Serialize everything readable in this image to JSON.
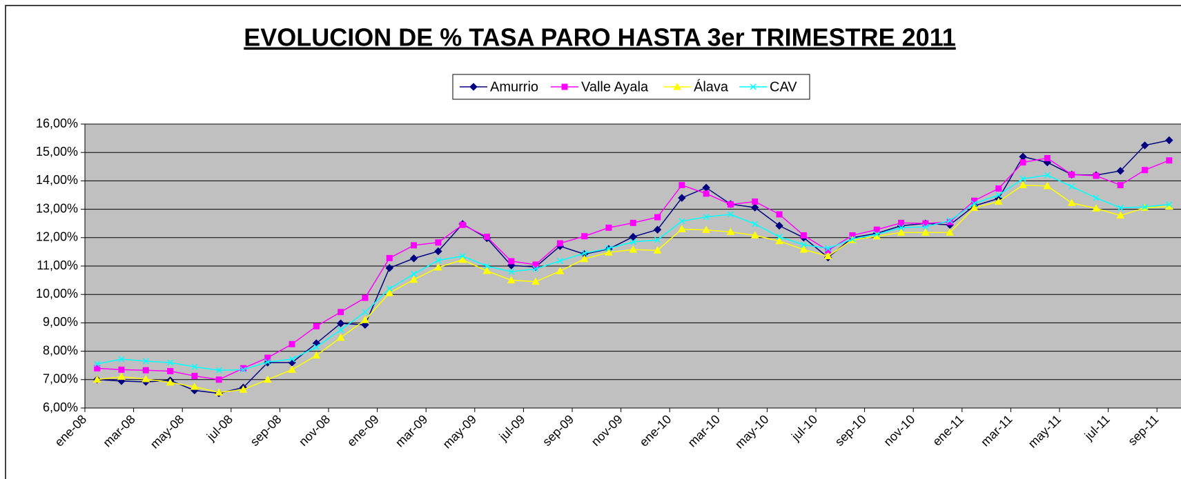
{
  "chart_data": {
    "type": "line",
    "title": "EVOLUCION DE % TASA PARO HASTA 3er TRIMESTRE 2011",
    "categories": [
      "ene-08",
      null,
      "mar-08",
      null,
      "may-08",
      null,
      "jul-08",
      null,
      "sep-08",
      null,
      "nov-08",
      null,
      "ene-09",
      null,
      "mar-09",
      null,
      "may-09",
      null,
      "jul-09",
      null,
      "sep-09",
      null,
      "nov-09",
      null,
      "ene-10",
      null,
      "mar-10",
      null,
      "may-10",
      null,
      "jul-10",
      null,
      "sep-10",
      null,
      "nov-10",
      null,
      "ene-11",
      null,
      "mar-11",
      null,
      "may-11",
      null,
      "jul-11",
      null,
      "sep-11"
    ],
    "series": [
      {
        "name": "Amurrio",
        "color": "#000080",
        "marker": "diamond",
        "values": [
          7.0,
          6.95,
          6.92,
          6.97,
          6.62,
          6.52,
          6.72,
          7.6,
          7.6,
          8.28,
          8.98,
          8.93,
          10.93,
          11.27,
          11.52,
          12.48,
          11.98,
          11.02,
          10.97,
          11.7,
          11.42,
          11.6,
          12.03,
          12.28,
          13.4,
          13.76,
          13.18,
          13.06,
          12.42,
          12.0,
          11.3,
          12.0,
          12.15,
          12.42,
          12.5,
          12.45,
          13.12,
          13.38,
          14.85,
          14.65,
          14.22,
          14.2,
          14.35,
          15.25,
          15.43
        ]
      },
      {
        "name": "Valle Ayala",
        "color": "#ff00ff",
        "marker": "square",
        "values": [
          7.4,
          7.35,
          7.33,
          7.3,
          7.13,
          7.0,
          7.4,
          7.77,
          8.25,
          8.88,
          9.38,
          9.88,
          11.28,
          11.73,
          11.83,
          12.45,
          12.03,
          11.17,
          11.05,
          11.8,
          12.05,
          12.35,
          12.52,
          12.72,
          13.85,
          13.55,
          13.17,
          13.27,
          12.82,
          12.08,
          11.55,
          12.08,
          12.28,
          12.52,
          12.5,
          12.55,
          13.3,
          13.73,
          14.65,
          14.8,
          14.22,
          14.18,
          13.85,
          14.38,
          14.72
        ]
      },
      {
        "name": "Álava",
        "color": "#ffff00",
        "marker": "triangle",
        "values": [
          7.0,
          7.1,
          7.02,
          6.9,
          6.75,
          6.55,
          6.65,
          7.0,
          7.35,
          7.85,
          8.48,
          9.1,
          10.05,
          10.52,
          10.95,
          11.22,
          10.83,
          10.5,
          10.45,
          10.82,
          11.25,
          11.48,
          11.58,
          11.55,
          12.3,
          12.27,
          12.2,
          12.08,
          11.88,
          11.58,
          11.35,
          11.92,
          12.05,
          12.18,
          12.18,
          12.18,
          13.05,
          13.27,
          13.85,
          13.82,
          13.22,
          13.03,
          12.78,
          13.05,
          13.1
        ]
      },
      {
        "name": "CAV",
        "color": "#00ffff",
        "marker": "x",
        "values": [
          7.55,
          7.72,
          7.65,
          7.6,
          7.45,
          7.33,
          7.35,
          7.62,
          7.72,
          8.15,
          8.75,
          9.38,
          10.2,
          10.72,
          11.2,
          11.35,
          11.0,
          10.8,
          10.9,
          11.18,
          11.45,
          11.62,
          11.85,
          11.92,
          12.58,
          12.73,
          12.82,
          12.48,
          12.03,
          11.75,
          11.62,
          11.95,
          12.12,
          12.35,
          12.38,
          12.6,
          13.2,
          13.5,
          14.07,
          14.2,
          13.8,
          13.4,
          13.05,
          13.08,
          13.17
        ]
      }
    ],
    "ylim": [
      6,
      16
    ],
    "yticks": [
      {
        "value": 6,
        "label": "6,00%"
      },
      {
        "value": 7,
        "label": "7,00%"
      },
      {
        "value": 8,
        "label": "8,00%"
      },
      {
        "value": 9,
        "label": "9,00%"
      },
      {
        "value": 10,
        "label": "10,00%"
      },
      {
        "value": 11,
        "label": "11,00%"
      },
      {
        "value": 12,
        "label": "12,00%"
      },
      {
        "value": 13,
        "label": "13,00%"
      },
      {
        "value": 14,
        "label": "14,00%"
      },
      {
        "value": 15,
        "label": "15,00%"
      },
      {
        "value": 16,
        "label": "16,00%"
      }
    ],
    "grid": true,
    "legend": "top",
    "plot_background": "#c0c0c0"
  }
}
